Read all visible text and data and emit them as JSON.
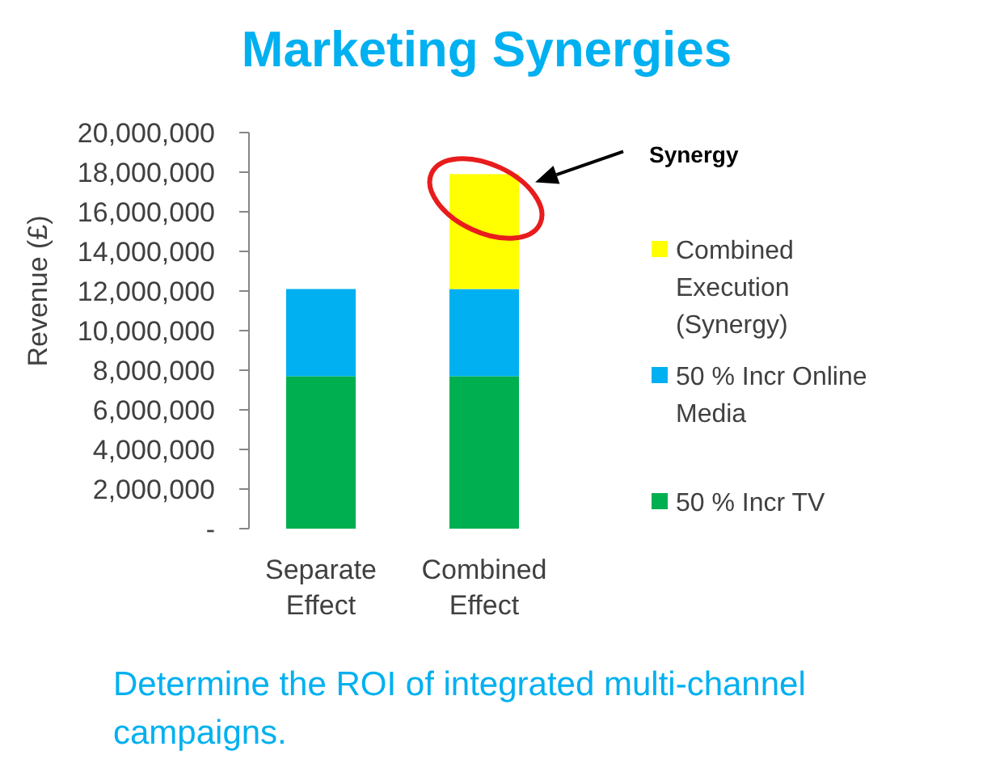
{
  "chart_data": {
    "type": "bar",
    "stacked": true,
    "title": "Marketing Synergies",
    "ylabel": "Revenue (£)",
    "categories": [
      "Separate Effect",
      "Combined Effect"
    ],
    "series": [
      {
        "name": "50 % Incr TV",
        "color": "#00b050",
        "values": [
          7700000,
          7700000
        ]
      },
      {
        "name": "50 % Incr Online Media",
        "color": "#00b0f0",
        "values": [
          4400000,
          4400000
        ]
      },
      {
        "name": "Combined Execution (Synergy)",
        "color": "#ffff00",
        "values": [
          null,
          5800000
        ]
      }
    ],
    "ylim": [
      0,
      20000000
    ],
    "yticks": [
      {
        "value": 0,
        "label": "-"
      },
      {
        "value": 2000000,
        "label": "2,000,000"
      },
      {
        "value": 4000000,
        "label": "4,000,000"
      },
      {
        "value": 6000000,
        "label": "6,000,000"
      },
      {
        "value": 8000000,
        "label": "8,000,000"
      },
      {
        "value": 10000000,
        "label": "10,000,000"
      },
      {
        "value": 12000000,
        "label": "12,000,000"
      },
      {
        "value": 14000000,
        "label": "14,000,000"
      },
      {
        "value": 16000000,
        "label": "16,000,000"
      },
      {
        "value": 18000000,
        "label": "18,000,000"
      },
      {
        "value": 20000000,
        "label": "20,000,000"
      }
    ],
    "legend": "right",
    "annotations": [
      "Synergy",
      "Determine the ROI of integrated multi-channel campaigns."
    ]
  }
}
